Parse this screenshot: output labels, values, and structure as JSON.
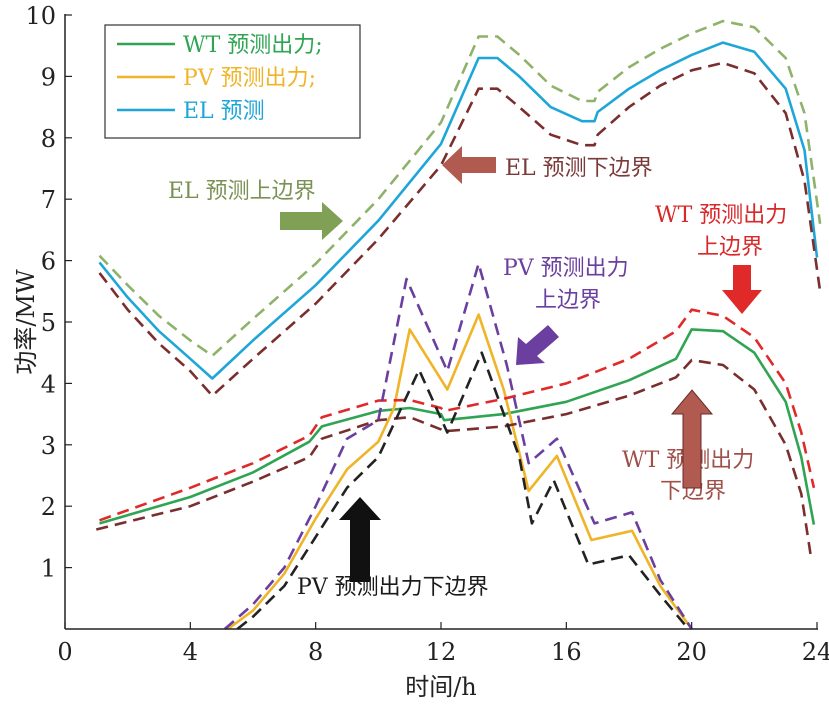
{
  "chart_data": {
    "type": "line",
    "xlabel": "时间/h",
    "ylabel": "功率/MW",
    "xlim": [
      0,
      24
    ],
    "ylim": [
      0,
      10
    ],
    "xticks": [
      0,
      4,
      8,
      12,
      16,
      20,
      24
    ],
    "yticks": [
      1,
      2,
      3,
      4,
      5,
      6,
      7,
      8,
      9,
      10
    ],
    "grid": false,
    "legend_position": "top-left",
    "series": [
      {
        "name": "WT 预测出力;",
        "color": "#2fa553",
        "dashed": false,
        "legend": true,
        "x": [
          1.1,
          4,
          6,
          7.8,
          8.2,
          10,
          11,
          12,
          12.1,
          14,
          16,
          18,
          19.5,
          20,
          21,
          22,
          23,
          23.5,
          23.9
        ],
        "y": [
          1.72,
          2.15,
          2.55,
          3.05,
          3.3,
          3.55,
          3.6,
          3.5,
          3.4,
          3.5,
          3.7,
          4.05,
          4.4,
          4.88,
          4.85,
          4.5,
          3.7,
          2.8,
          1.7
        ]
      },
      {
        "name": "PV 预测出力;",
        "color": "#f0b429",
        "dashed": false,
        "legend": true,
        "x": [
          5.2,
          6,
          7,
          8,
          9,
          10,
          10.5,
          11,
          12.2,
          13.2,
          14,
          14.8,
          15.7,
          16.8,
          18.1,
          19,
          20
        ],
        "y": [
          0,
          0.3,
          0.9,
          1.8,
          2.6,
          3.05,
          3.6,
          4.88,
          3.9,
          5.12,
          3.9,
          2.25,
          2.82,
          1.45,
          1.6,
          0.7,
          0
        ]
      },
      {
        "name": "EL 预测",
        "color": "#1fa6d8",
        "dashed": false,
        "legend": true,
        "x": [
          1.1,
          2,
          3,
          4,
          4.7,
          6,
          8,
          10,
          12,
          13.2,
          13.8,
          14.5,
          15.5,
          16.5,
          16.9,
          17,
          18,
          19,
          20,
          21,
          22,
          23,
          23.6,
          24
        ],
        "y": [
          5.97,
          5.4,
          4.85,
          4.4,
          4.08,
          4.7,
          5.6,
          6.65,
          7.9,
          9.3,
          9.3,
          9.0,
          8.5,
          8.27,
          8.27,
          8.42,
          8.8,
          9.1,
          9.35,
          9.55,
          9.4,
          8.8,
          7.8,
          6.05
        ]
      },
      {
        "name": "EL 预测上边界",
        "color": "#8fb26a",
        "dashed": true,
        "legend": false,
        "x": [
          1.1,
          2,
          3,
          4,
          4.7,
          6,
          8,
          10,
          12,
          13.2,
          13.8,
          14.5,
          15.5,
          16.5,
          16.9,
          17,
          18,
          19,
          20,
          21,
          22,
          23,
          23.6,
          24.1
        ],
        "y": [
          6.08,
          5.6,
          5.1,
          4.7,
          4.45,
          5.05,
          5.95,
          7.0,
          8.25,
          9.65,
          9.65,
          9.35,
          8.85,
          8.6,
          8.6,
          8.75,
          9.15,
          9.45,
          9.7,
          9.9,
          9.8,
          9.3,
          8.4,
          6.6
        ]
      },
      {
        "name": "EL 预测下边界",
        "color": "#7a2e2e",
        "dashed": true,
        "legend": false,
        "x": [
          1.1,
          2,
          3,
          4,
          4.7,
          6,
          8,
          10,
          12,
          13.2,
          13.8,
          14.5,
          15.5,
          16.5,
          16.9,
          17,
          18,
          19,
          20,
          21,
          22,
          23,
          23.6,
          24.1
        ],
        "y": [
          5.8,
          5.2,
          4.65,
          4.2,
          3.8,
          4.4,
          5.3,
          6.35,
          7.55,
          8.8,
          8.8,
          8.5,
          8.05,
          7.88,
          7.88,
          8.05,
          8.5,
          8.85,
          9.1,
          9.22,
          9.05,
          8.4,
          7.3,
          5.5
        ]
      },
      {
        "name": "WT 预测出力上边界",
        "color": "#e02a2a",
        "dashed": true,
        "legend": false,
        "x": [
          1.1,
          4,
          6,
          7.8,
          8.2,
          10,
          11,
          12,
          12.1,
          14,
          16,
          18,
          19.5,
          20,
          21,
          22,
          23,
          23.5,
          23.9
        ],
        "y": [
          1.77,
          2.3,
          2.7,
          3.15,
          3.45,
          3.72,
          3.73,
          3.6,
          3.55,
          3.75,
          4.0,
          4.4,
          4.85,
          5.2,
          5.1,
          4.75,
          4.0,
          3.2,
          2.3
        ]
      },
      {
        "name": "WT 预测出力下边界",
        "color": "#7a2e2e",
        "dashed": true,
        "legend": false,
        "x": [
          1,
          4,
          6,
          7.8,
          8.2,
          10,
          11,
          12,
          12.1,
          14,
          16,
          18,
          19.5,
          20,
          21,
          22,
          23,
          23.5,
          23.8
        ],
        "y": [
          1.62,
          2.0,
          2.4,
          2.8,
          3.1,
          3.4,
          3.45,
          3.25,
          3.22,
          3.3,
          3.5,
          3.8,
          4.1,
          4.38,
          4.3,
          3.9,
          3.0,
          2.2,
          1.2
        ]
      },
      {
        "name": "PV 预测出力上边界",
        "color": "#6a3fa0",
        "dashed": true,
        "legend": false,
        "x": [
          5.1,
          6,
          7,
          8,
          9,
          10,
          10.9,
          12.2,
          13.2,
          14.1,
          14.8,
          15.7,
          16.9,
          18.1,
          19,
          20
        ],
        "y": [
          0,
          0.4,
          1.0,
          2.0,
          3.1,
          3.4,
          5.7,
          4.2,
          5.95,
          4.3,
          2.7,
          3.1,
          1.72,
          1.9,
          0.8,
          0
        ]
      },
      {
        "name": "PV 预测出力下边界",
        "color": "#222222",
        "dashed": true,
        "legend": false,
        "x": [
          5.5,
          6,
          7,
          8,
          9,
          10,
          11.3,
          12.2,
          13.3,
          14.5,
          14.9,
          15.6,
          16.7,
          18,
          19,
          19.9
        ],
        "y": [
          0,
          0.2,
          0.7,
          1.5,
          2.3,
          2.8,
          4.22,
          3.2,
          4.5,
          2.8,
          1.72,
          2.42,
          1.05,
          1.2,
          0.55,
          0
        ]
      }
    ],
    "annotations": {
      "el_upper": "EL 预测上边界",
      "el_lower": "EL 预测下边界",
      "wt_upper_1": "WT 预测出力",
      "wt_upper_2": "上边界",
      "pv_upper_1": "PV 预测出力",
      "pv_upper_2": "上边界",
      "wt_lower_1": "WT 预测出力",
      "wt_lower_2": "下边界",
      "pv_lower": "PV 预测出力下边界"
    },
    "annotation_colors": {
      "el_upper": "#7a9254",
      "el_lower": "#7a3a3a",
      "wt_upper": "#d8282a",
      "pv_upper": "#6a3fa0",
      "wt_lower": "#a0504a",
      "pv_lower": "#1a1a1a"
    }
  }
}
